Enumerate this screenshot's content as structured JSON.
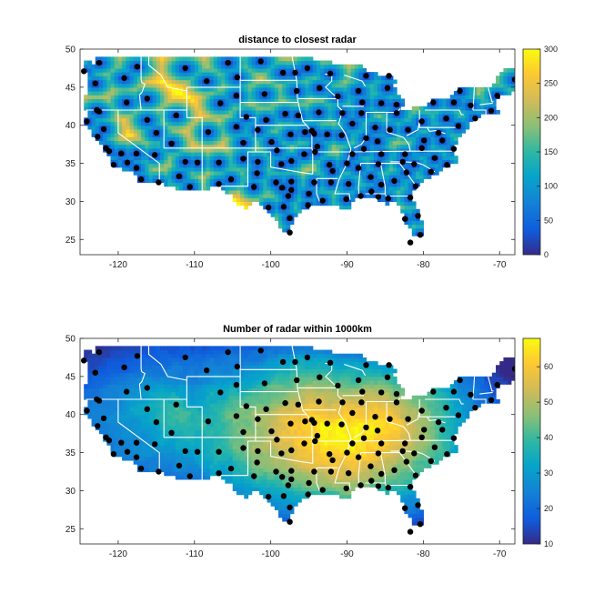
{
  "chart_data": [
    {
      "type": "heatmap",
      "title": "distance to closest radar",
      "xlim": [
        -125,
        -68
      ],
      "ylim": [
        23,
        50
      ],
      "xticks": [
        -120,
        -110,
        -100,
        -90,
        -80,
        -70
      ],
      "yticks": [
        25,
        30,
        35,
        40,
        45,
        50
      ],
      "colorbar": {
        "range": [
          0,
          300
        ],
        "ticks": [
          0,
          50,
          100,
          150,
          200,
          250,
          300
        ]
      },
      "colormap": "parula",
      "background_color": "#ffffff"
    },
    {
      "type": "heatmap",
      "title": "Number of radar within 1000km",
      "xlim": [
        -125,
        -68
      ],
      "ylim": [
        23,
        50
      ],
      "xticks": [
        -120,
        -110,
        -100,
        -90,
        -80,
        -70
      ],
      "yticks": [
        25,
        30,
        35,
        40,
        45,
        50
      ],
      "colorbar": {
        "range": [
          10,
          68
        ],
        "ticks": [
          10,
          20,
          30,
          40,
          50,
          60
        ]
      },
      "colormap": "parula",
      "background_color": "#ffffff"
    }
  ],
  "radar_sites": [
    [
      -124.1,
      40.5
    ],
    [
      -122.7,
      38.5
    ],
    [
      -121.9,
      39.5
    ],
    [
      -121.6,
      37.0
    ],
    [
      -122.5,
      41.8
    ],
    [
      -121.2,
      36.6
    ],
    [
      -119.6,
      36.3
    ],
    [
      -118.8,
      35.1
    ],
    [
      -117.6,
      34.4
    ],
    [
      -117.0,
      32.9
    ],
    [
      -120.6,
      34.8
    ],
    [
      -117.6,
      36.3
    ],
    [
      -115.2,
      36.1
    ],
    [
      -114.7,
      32.5
    ],
    [
      -112.0,
      33.3
    ],
    [
      -111.2,
      35.2
    ],
    [
      -110.6,
      31.9
    ],
    [
      -113.0,
      37.6
    ],
    [
      -112.4,
      41.3
    ],
    [
      -116.2,
      43.5
    ],
    [
      -117.5,
      47.7
    ],
    [
      -119.2,
      46.2
    ],
    [
      -122.5,
      48.2
    ],
    [
      -123.0,
      45.5
    ],
    [
      -124.5,
      47.1
    ],
    [
      -122.8,
      42.0
    ],
    [
      -118.9,
      43.0
    ],
    [
      -115.0,
      39.0
    ],
    [
      -116.2,
      40.7
    ],
    [
      -109.6,
      35.1
    ],
    [
      -106.8,
      32.3
    ],
    [
      -106.8,
      35.1
    ],
    [
      -105.2,
      32.9
    ],
    [
      -104.5,
      39.8
    ],
    [
      -103.6,
      35.6
    ],
    [
      -108.2,
      39.1
    ],
    [
      -108.4,
      45.8
    ],
    [
      -106.6,
      42.9
    ],
    [
      -104.5,
      43.9
    ],
    [
      -111.2,
      47.5
    ],
    [
      -105.6,
      48.2
    ],
    [
      -104.4,
      46.3
    ],
    [
      -103.2,
      41.1
    ],
    [
      -103.6,
      37.7
    ],
    [
      -101.3,
      48.4
    ],
    [
      -98.4,
      46.9
    ],
    [
      -96.6,
      44.5
    ],
    [
      -100.8,
      44.1
    ],
    [
      -98.1,
      41.5
    ],
    [
      -96.4,
      41.3
    ],
    [
      -100.6,
      40.7
    ],
    [
      -101.7,
      39.4
    ],
    [
      -97.4,
      38.8
    ],
    [
      -99.9,
      37.8
    ],
    [
      -101.7,
      35.2
    ],
    [
      -99.2,
      36.7
    ],
    [
      -97.3,
      35.3
    ],
    [
      -98.6,
      34.9
    ],
    [
      -95.6,
      36.2
    ],
    [
      -102.2,
      31.9
    ],
    [
      -101.8,
      33.7
    ],
    [
      -99.3,
      32.5
    ],
    [
      -97.3,
      32.6
    ],
    [
      -98.3,
      29.3
    ],
    [
      -97.5,
      27.8
    ],
    [
      -97.3,
      31.5
    ],
    [
      -95.1,
      29.5
    ],
    [
      -94.3,
      32.5
    ],
    [
      -97.5,
      25.9
    ],
    [
      -100.3,
      29.2
    ],
    [
      -93.2,
      30.1
    ],
    [
      -92.1,
      32.5
    ],
    [
      -90.1,
      30.3
    ],
    [
      -89.8,
      32.3
    ],
    [
      -88.5,
      34.4
    ],
    [
      -86.9,
      33.2
    ],
    [
      -85.9,
      34.9
    ],
    [
      -88.2,
      30.7
    ],
    [
      -85.5,
      32.2
    ],
    [
      -85.9,
      30.6
    ],
    [
      -84.6,
      30.4
    ],
    [
      -82.2,
      33.8
    ],
    [
      -83.8,
      32.7
    ],
    [
      -81.0,
      32.0
    ],
    [
      -81.7,
      30.5
    ],
    [
      -80.7,
      28.1
    ],
    [
      -82.4,
      27.7
    ],
    [
      -80.4,
      25.6
    ],
    [
      -81.7,
      24.6
    ],
    [
      -81.2,
      34.9
    ],
    [
      -79.0,
      33.9
    ],
    [
      -78.5,
      35.7
    ],
    [
      -76.9,
      34.8
    ],
    [
      -80.2,
      37.0
    ],
    [
      -77.5,
      38.0
    ],
    [
      -76.0,
      36.9
    ],
    [
      -78.0,
      39.0
    ],
    [
      -75.4,
      39.9
    ],
    [
      -77.0,
      40.9
    ],
    [
      -80.2,
      40.5
    ],
    [
      -78.7,
      43.0
    ],
    [
      -76.0,
      43.0
    ],
    [
      -73.2,
      40.9
    ],
    [
      -73.8,
      42.6
    ],
    [
      -71.1,
      41.9
    ],
    [
      -70.3,
      43.9
    ],
    [
      -68.0,
      46.0
    ],
    [
      -75.2,
      44.5
    ],
    [
      -82.0,
      39.4
    ],
    [
      -84.4,
      39.4
    ],
    [
      -83.5,
      41.6
    ],
    [
      -86.3,
      39.7
    ],
    [
      -87.5,
      38.3
    ],
    [
      -86.0,
      37.9
    ],
    [
      -85.5,
      36.2
    ],
    [
      -89.3,
      36.2
    ],
    [
      -90.0,
      35.0
    ],
    [
      -92.3,
      34.8
    ],
    [
      -94.2,
      36.5
    ],
    [
      -93.9,
      37.2
    ],
    [
      -90.7,
      38.7
    ],
    [
      -92.6,
      38.8
    ],
    [
      -89.3,
      40.2
    ],
    [
      -88.1,
      41.6
    ],
    [
      -90.6,
      41.6
    ],
    [
      -93.7,
      41.7
    ],
    [
      -95.5,
      39.1
    ],
    [
      -94.3,
      38.9
    ],
    [
      -94.6,
      39.3
    ],
    [
      -93.6,
      44.9
    ],
    [
      -92.2,
      46.8
    ],
    [
      -91.2,
      43.8
    ],
    [
      -88.5,
      44.5
    ],
    [
      -88.0,
      43.0
    ],
    [
      -85.5,
      42.9
    ],
    [
      -83.5,
      42.7
    ],
    [
      -84.7,
      44.9
    ],
    [
      -87.5,
      46.5
    ],
    [
      -84.5,
      46.5
    ],
    [
      -95.2,
      47.5
    ],
    [
      -96.8,
      46.9
    ],
    [
      -98.5,
      31.8
    ],
    [
      -97.7,
      30.7
    ],
    [
      -95.0,
      31.0
    ],
    [
      -91.9,
      34.0
    ],
    [
      -87.8,
      36.9
    ],
    [
      -82.4,
      36.2
    ],
    [
      -79.9,
      38.0
    ],
    [
      -82.7,
      35.2
    ],
    [
      -86.8,
      31.3
    ]
  ]
}
